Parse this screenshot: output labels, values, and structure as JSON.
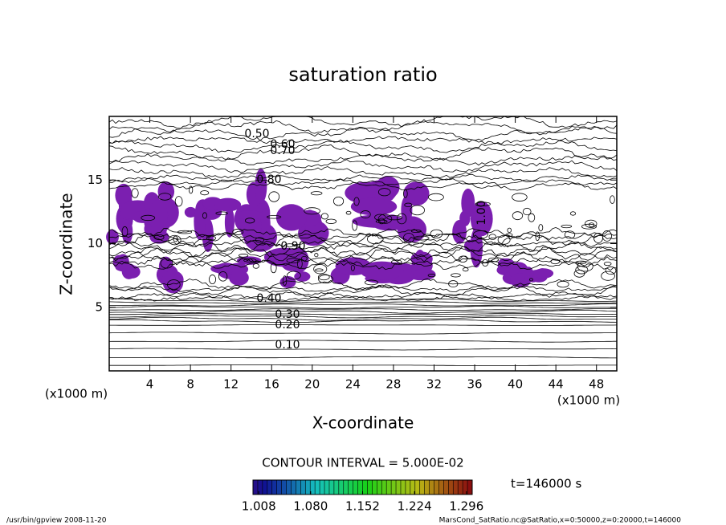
{
  "chart_data": {
    "type": "contour",
    "title": "saturation ratio",
    "x_label": "X-coordinate",
    "y_label": "Z-coordinate",
    "x_unit": "(x1000 m)",
    "y_unit": "(x1000 m)",
    "xlim": [
      0,
      50
    ],
    "ylim": [
      0,
      20
    ],
    "xticks": [
      4,
      8,
      12,
      16,
      20,
      24,
      28,
      32,
      36,
      40,
      44,
      48
    ],
    "yticks": [
      5,
      10,
      15
    ],
    "contour_labels": [
      "0.50",
      "0.60",
      "0.70",
      "0.80",
      "0.90",
      "1.00",
      "0.40",
      "0.30",
      "0.20",
      "0.10"
    ],
    "contour_interval": "CONTOUR INTERVAL = 5.000E-02",
    "time_label": "t=146000 s",
    "fill_color": "#7b1fb0",
    "colorbar": {
      "clim": [
        1.0,
        1.304
      ],
      "ticks": [
        1.008,
        {
          "value": 1.08,
          "label": "1.080"
        },
        1.152,
        1.224,
        1.296
      ]
    },
    "footer_left": "/usr/bin/gpview  2008-11-20",
    "footer_right": "MarsCond_SatRatio.nc@SatRatio,x=0:50000,z=0:20000,t=146000"
  }
}
